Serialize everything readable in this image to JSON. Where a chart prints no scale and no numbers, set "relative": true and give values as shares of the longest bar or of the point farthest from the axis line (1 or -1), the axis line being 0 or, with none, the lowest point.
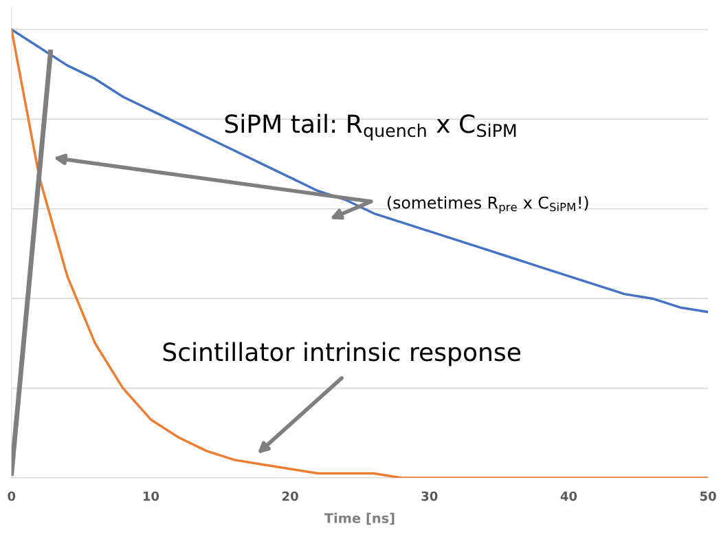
{
  "chart_data": {
    "type": "line",
    "relative": true,
    "xlabel": "Time [ns]",
    "xlim": [
      0,
      50
    ],
    "xticks": [
      0,
      10,
      20,
      30,
      40,
      50
    ],
    "grid": "y",
    "legend": false,
    "marker": "none",
    "line_style": "solid",
    "tick_labels": "x",
    "series": [
      {
        "color": "#4472c4",
        "x": [
          0,
          2,
          4,
          6,
          8,
          10,
          12,
          14,
          16,
          18,
          20,
          22,
          24,
          26,
          28,
          30,
          32,
          34,
          36,
          38,
          40,
          42,
          44,
          46,
          48,
          50
        ],
        "values": [
          1,
          0.96,
          0.92,
          0.89,
          0.85,
          0.82,
          0.79,
          0.76,
          0.73,
          0.7,
          0.67,
          0.64,
          0.62,
          0.59,
          0.57,
          0.55,
          0.53,
          0.51,
          0.49,
          0.47,
          0.45,
          0.43,
          0.41,
          0.4,
          0.38,
          0.37
        ]
      },
      {
        "color": "#ed7d31",
        "x": [
          0,
          2,
          4,
          6,
          8,
          10,
          12,
          14,
          16,
          18,
          20,
          22,
          24,
          26,
          28,
          30,
          32,
          34,
          36,
          38,
          40,
          42,
          44,
          46,
          48,
          50
        ],
        "values": [
          1,
          0.67,
          0.45,
          0.3,
          0.2,
          0.13,
          0.09,
          0.06,
          0.04,
          0.03,
          0.02,
          0.01,
          0.01,
          0.01,
          0,
          0,
          0,
          0,
          0,
          0,
          0,
          0,
          0,
          0,
          0,
          0
        ]
      },
      {
        "color": "#7f7f7f",
        "x": [
          0,
          2.8
        ],
        "values": [
          0.01,
          0.95
        ]
      }
    ],
    "annotations": [
      "SiPM tail: R$_{quench}$ x C$_{SiPM}$",
      "(sometimes R$_{pre}$ x C$_{SiPM}$!)",
      "Scintillator intrinsic response"
    ]
  }
}
